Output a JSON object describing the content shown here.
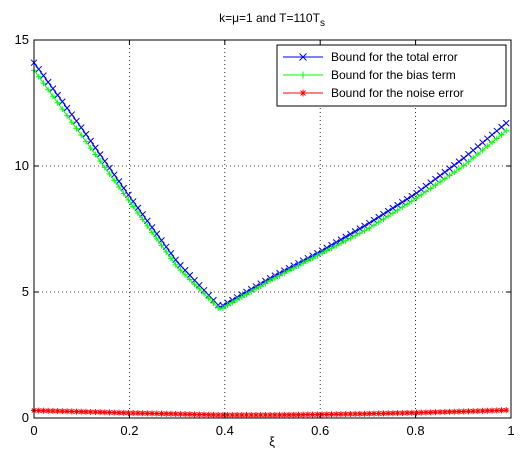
{
  "chart_data": {
    "type": "line",
    "title": "k=μ=1 and T=110T",
    "title_subscript": "s",
    "xlabel": "ξ",
    "ylabel": "",
    "xlim": [
      0,
      1
    ],
    "ylim": [
      0,
      15
    ],
    "x_ticks": [
      "0",
      "0.2",
      "0.4",
      "0.6",
      "0.8",
      "1"
    ],
    "y_ticks": [
      "0",
      "5",
      "10",
      "15"
    ],
    "grid": true,
    "legend_position": "top-right",
    "series": [
      {
        "name": "Bound for the total error",
        "color": "#0000ff",
        "marker": "x",
        "x": [
          0,
          0.1,
          0.2,
          0.3,
          0.39,
          0.5,
          0.6,
          0.7,
          0.8,
          0.9,
          0.99
        ],
        "y": [
          14.1,
          11.5,
          8.8,
          6.2,
          4.4,
          5.6,
          6.6,
          7.7,
          8.9,
          10.3,
          11.7
        ]
      },
      {
        "name": "Bound for the bias term",
        "color": "#00ff00",
        "marker": "+",
        "x": [
          0,
          0.1,
          0.2,
          0.3,
          0.39,
          0.5,
          0.6,
          0.7,
          0.8,
          0.9,
          0.99
        ],
        "y": [
          13.8,
          11.2,
          8.6,
          6.0,
          4.3,
          5.5,
          6.5,
          7.5,
          8.7,
          10.0,
          11.4
        ]
      },
      {
        "name": "Bound for the noise error",
        "color": "#ff0000",
        "marker": "*",
        "x": [
          0,
          0.1,
          0.2,
          0.3,
          0.39,
          0.5,
          0.6,
          0.7,
          0.8,
          0.9,
          0.99
        ],
        "y": [
          0.3,
          0.25,
          0.2,
          0.16,
          0.12,
          0.12,
          0.14,
          0.17,
          0.21,
          0.26,
          0.31
        ]
      }
    ]
  }
}
